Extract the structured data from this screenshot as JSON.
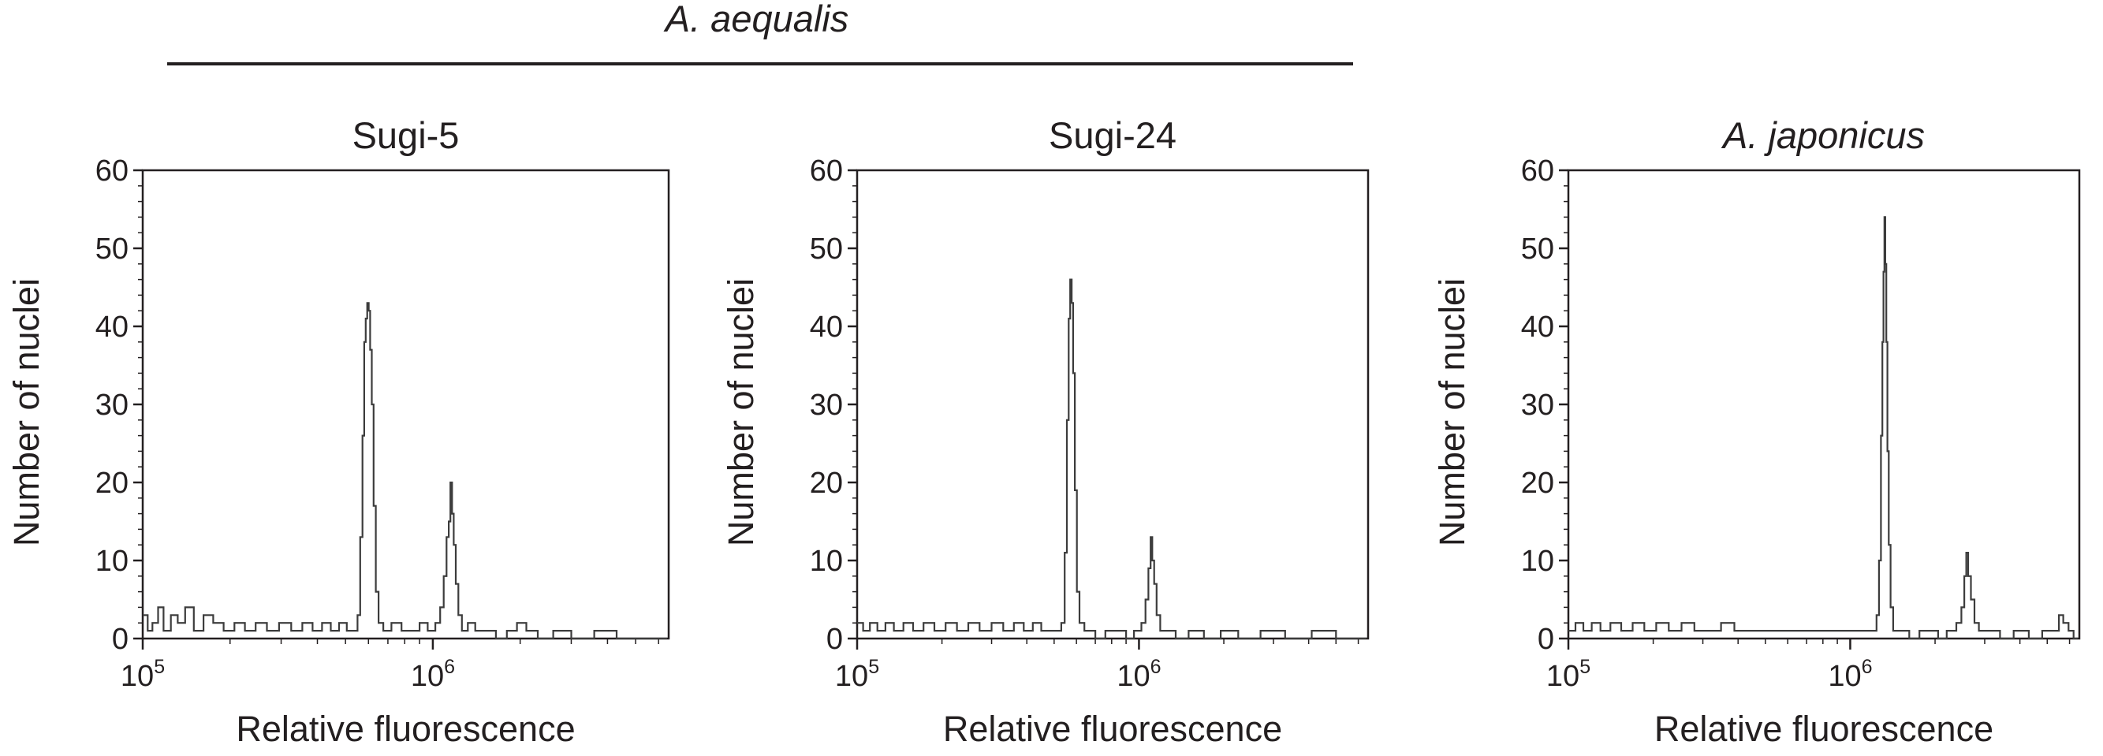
{
  "figure": {
    "group_label": "A. aequalis",
    "colors": {
      "ink": "#231f20",
      "trace": "#3c3c3c",
      "background": "#ffffff"
    }
  },
  "chart_data": [
    {
      "type": "line",
      "title": "Sugi-5",
      "title_italic": false,
      "xlabel": "Relative fluorescence",
      "ylabel": "Number of nuclei",
      "x_scale": "log",
      "xlim": [
        100000,
        6500000
      ],
      "ylim": [
        0,
        60
      ],
      "yticks": [
        0,
        10,
        20,
        30,
        40,
        50,
        60
      ],
      "xticks": [
        {
          "value": 100000,
          "base": "10",
          "exp": "5"
        },
        {
          "value": 1000000,
          "base": "10",
          "exp": "6"
        }
      ],
      "grid": false,
      "series": [
        {
          "baseline_noise": [
            [
              100000,
              3
            ],
            [
              104000,
              1
            ],
            [
              108000,
              2
            ],
            [
              113000,
              4
            ],
            [
              118000,
              1
            ],
            [
              125000,
              3
            ],
            [
              132000,
              2
            ],
            [
              140000,
              4
            ],
            [
              150000,
              1
            ],
            [
              162000,
              3
            ],
            [
              175000,
              2
            ],
            [
              190000,
              1
            ],
            [
              207000,
              2
            ],
            [
              225000,
              1
            ],
            [
              245000,
              2
            ],
            [
              268000,
              1
            ],
            [
              295000,
              2
            ],
            [
              325000,
              1
            ],
            [
              355000,
              2
            ],
            [
              385000,
              1
            ],
            [
              415000,
              2
            ],
            [
              445000,
              1
            ],
            [
              475000,
              2
            ],
            [
              505000,
              1
            ]
          ],
          "points": [
            [
              535000,
              1
            ],
            [
              550000,
              3
            ],
            [
              562000,
              13
            ],
            [
              572000,
              26
            ],
            [
              580000,
              38
            ],
            [
              587000,
              41
            ],
            [
              594000,
              43
            ],
            [
              601000,
              42
            ],
            [
              608000,
              37
            ],
            [
              616000,
              30
            ],
            [
              625000,
              17
            ],
            [
              636000,
              6
            ],
            [
              650000,
              2
            ],
            [
              675000,
              1
            ],
            [
              720000,
              2
            ],
            [
              780000,
              1
            ],
            [
              840000,
              1
            ],
            [
              900000,
              2
            ],
            [
              960000,
              1
            ],
            [
              1020000,
              2
            ],
            [
              1060000,
              4
            ],
            [
              1090000,
              8
            ],
            [
              1115000,
              13
            ],
            [
              1135000,
              15
            ],
            [
              1150000,
              20
            ],
            [
              1165000,
              16
            ],
            [
              1180000,
              12
            ],
            [
              1200000,
              7
            ],
            [
              1225000,
              3
            ],
            [
              1260000,
              1
            ],
            [
              1320000,
              2
            ],
            [
              1400000,
              1
            ],
            [
              1500000,
              1
            ],
            [
              1650000,
              0
            ],
            [
              1800000,
              1
            ],
            [
              1950000,
              2
            ],
            [
              2100000,
              1
            ],
            [
              2300000,
              0
            ],
            [
              2600000,
              1
            ],
            [
              3000000,
              0
            ],
            [
              3600000,
              1
            ],
            [
              4300000,
              0
            ],
            [
              5200000,
              0
            ]
          ]
        }
      ]
    },
    {
      "type": "line",
      "title": "Sugi-24",
      "title_italic": false,
      "xlabel": "Relative fluorescence",
      "ylabel": "Number of nuclei",
      "x_scale": "log",
      "xlim": [
        100000,
        6500000
      ],
      "ylim": [
        0,
        60
      ],
      "yticks": [
        0,
        10,
        20,
        30,
        40,
        50,
        60
      ],
      "xticks": [
        {
          "value": 100000,
          "base": "10",
          "exp": "5"
        },
        {
          "value": 1000000,
          "base": "10",
          "exp": "6"
        }
      ],
      "grid": false,
      "series": [
        {
          "baseline_noise": [
            [
              100000,
              2
            ],
            [
              105000,
              1
            ],
            [
              111000,
              2
            ],
            [
              118000,
              1
            ],
            [
              126000,
              2
            ],
            [
              135000,
              1
            ],
            [
              146000,
              2
            ],
            [
              158000,
              1
            ],
            [
              172000,
              2
            ],
            [
              188000,
              1
            ],
            [
              206000,
              2
            ],
            [
              226000,
              1
            ],
            [
              248000,
              2
            ],
            [
              272000,
              1
            ],
            [
              300000,
              2
            ],
            [
              330000,
              1
            ],
            [
              360000,
              2
            ],
            [
              390000,
              1
            ],
            [
              420000,
              2
            ],
            [
              450000,
              1
            ],
            [
              480000,
              1
            ]
          ],
          "points": [
            [
              510000,
              1
            ],
            [
              530000,
              2
            ],
            [
              545000,
              11
            ],
            [
              555000,
              28
            ],
            [
              563000,
              41
            ],
            [
              570000,
              46
            ],
            [
              577000,
              43
            ],
            [
              584000,
              34
            ],
            [
              592000,
              19
            ],
            [
              602000,
              6
            ],
            [
              615000,
              2
            ],
            [
              640000,
              1
            ],
            [
              700000,
              0
            ],
            [
              760000,
              1
            ],
            [
              830000,
              1
            ],
            [
              900000,
              0
            ],
            [
              960000,
              1
            ],
            [
              1020000,
              2
            ],
            [
              1055000,
              5
            ],
            [
              1080000,
              9
            ],
            [
              1100000,
              13
            ],
            [
              1115000,
              10
            ],
            [
              1132000,
              7
            ],
            [
              1155000,
              3
            ],
            [
              1190000,
              1
            ],
            [
              1250000,
              1
            ],
            [
              1350000,
              0
            ],
            [
              1500000,
              1
            ],
            [
              1700000,
              0
            ],
            [
              1950000,
              1
            ],
            [
              2250000,
              0
            ],
            [
              2700000,
              1
            ],
            [
              3300000,
              0
            ],
            [
              4100000,
              1
            ],
            [
              5000000,
              0
            ]
          ]
        }
      ]
    },
    {
      "type": "line",
      "title": "A. japonicus",
      "title_italic": true,
      "xlabel": "Relative fluorescence",
      "ylabel": "Number of nuclei",
      "x_scale": "log",
      "xlim": [
        100000,
        6500000
      ],
      "ylim": [
        0,
        60
      ],
      "yticks": [
        0,
        10,
        20,
        30,
        40,
        50,
        60
      ],
      "xticks": [
        {
          "value": 100000,
          "base": "10",
          "exp": "5"
        },
        {
          "value": 1000000,
          "base": "10",
          "exp": "6"
        }
      ],
      "grid": false,
      "series": [
        {
          "baseline_noise": [
            [
              100000,
              1
            ],
            [
              106000,
              2
            ],
            [
              113000,
              1
            ],
            [
              121000,
              2
            ],
            [
              130000,
              1
            ],
            [
              141000,
              2
            ],
            [
              154000,
              1
            ],
            [
              169000,
              2
            ],
            [
              186000,
              1
            ],
            [
              205000,
              2
            ],
            [
              227000,
              1
            ],
            [
              252000,
              2
            ],
            [
              280000,
              1
            ],
            [
              312000,
              1
            ],
            [
              348000,
              2
            ],
            [
              388000,
              1
            ],
            [
              432000,
              1
            ],
            [
              480000,
              1
            ],
            [
              535000,
              1
            ],
            [
              595000,
              1
            ],
            [
              660000,
              1
            ],
            [
              730000,
              1
            ],
            [
              800000,
              1
            ],
            [
              870000,
              1
            ],
            [
              940000,
              1
            ],
            [
              1010000,
              1
            ],
            [
              1080000,
              1
            ],
            [
              1150000,
              1
            ]
          ],
          "points": [
            [
              1210000,
              1
            ],
            [
              1240000,
              3
            ],
            [
              1265000,
              10
            ],
            [
              1285000,
              26
            ],
            [
              1300000,
              38
            ],
            [
              1312000,
              47
            ],
            [
              1322000,
              54
            ],
            [
              1332000,
              48
            ],
            [
              1343000,
              38
            ],
            [
              1355000,
              24
            ],
            [
              1370000,
              12
            ],
            [
              1390000,
              4
            ],
            [
              1420000,
              1
            ],
            [
              1500000,
              1
            ],
            [
              1620000,
              0
            ],
            [
              1760000,
              1
            ],
            [
              1900000,
              1
            ],
            [
              2050000,
              0
            ],
            [
              2200000,
              1
            ],
            [
              2380000,
              2
            ],
            [
              2480000,
              4
            ],
            [
              2540000,
              8
            ],
            [
              2580000,
              11
            ],
            [
              2620000,
              8
            ],
            [
              2680000,
              5
            ],
            [
              2760000,
              2
            ],
            [
              2860000,
              1
            ],
            [
              3050000,
              1
            ],
            [
              3400000,
              0
            ],
            [
              3800000,
              1
            ],
            [
              4300000,
              0
            ],
            [
              4800000,
              1
            ],
            [
              5200000,
              1
            ],
            [
              5500000,
              3
            ],
            [
              5700000,
              2
            ],
            [
              5950000,
              1
            ],
            [
              6200000,
              0
            ]
          ]
        }
      ]
    }
  ]
}
